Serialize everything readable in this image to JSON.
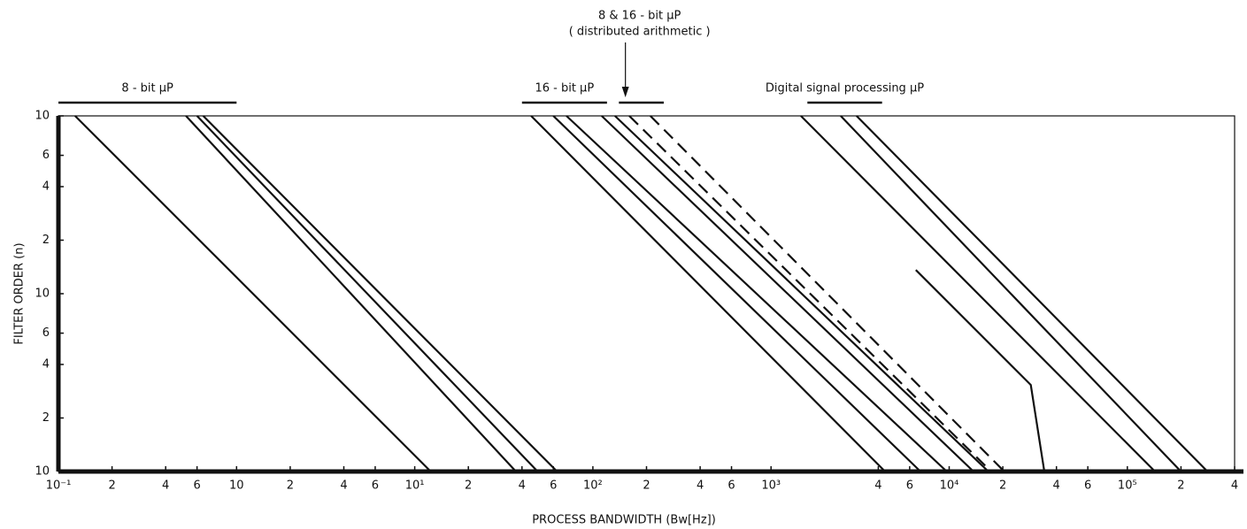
{
  "chart_data": {
    "type": "line",
    "x_label": "PROCESS BANDWIDTH (Bw[Hz])",
    "y_label": "FILTER ORDER (n)",
    "log_x": true,
    "log_y": true,
    "xlim": [
      0.1,
      400000
    ],
    "ylim": [
      1,
      100
    ],
    "xticks": [
      {
        "value": 0.1,
        "label": "10⁻¹"
      },
      {
        "value": 0.2,
        "label": "2"
      },
      {
        "value": 0.4,
        "label": "4"
      },
      {
        "value": 0.6,
        "label": "6"
      },
      {
        "value": 1,
        "label": "10"
      },
      2,
      4,
      6,
      {
        "value": 10,
        "label": "10¹"
      },
      {
        "value": 20,
        "label": "2"
      },
      {
        "value": 40,
        "label": "4"
      },
      {
        "value": 60,
        "label": "6"
      },
      {
        "value": 100,
        "label": "10²"
      },
      {
        "value": 200,
        "label": "2"
      },
      {
        "value": 400,
        "label": "4"
      },
      {
        "value": 600,
        "label": "6"
      },
      {
        "value": 1000,
        "label": "10³"
      },
      {
        "value": 4000,
        "label": "4"
      },
      {
        "value": 6000,
        "label": "6"
      },
      {
        "value": 10000,
        "label": "10⁴"
      },
      {
        "value": 20000,
        "label": "2"
      },
      {
        "value": 40000,
        "label": "4"
      },
      {
        "value": 60000,
        "label": "6"
      },
      {
        "value": 100000,
        "label": "10⁵"
      },
      {
        "value": 200000,
        "label": "2"
      },
      {
        "value": 400000,
        "label": "4"
      }
    ],
    "yticks": [
      {
        "value": 1,
        "label": "10"
      },
      2,
      4,
      6,
      10,
      {
        "value": 20,
        "label": "2"
      },
      {
        "value": 40,
        "label": "4"
      },
      {
        "value": 60,
        "label": "6"
      },
      {
        "value": 100,
        "label": "10"
      }
    ],
    "color": "#111111",
    "series": [
      {
        "x": [
          0.124,
          12.3
        ],
        "values": [
          100,
          1
        ],
        "style": "solid"
      },
      {
        "x": [
          0.52,
          37
        ],
        "values": [
          100,
          1
        ],
        "style": "solid"
      },
      {
        "x": [
          0.6,
          49
        ],
        "values": [
          100,
          1
        ],
        "style": "solid"
      },
      {
        "x": [
          0.65,
          63
        ],
        "values": [
          100,
          1
        ],
        "style": "solid"
      },
      {
        "x": [
          45,
          4370
        ],
        "values": [
          100,
          1
        ],
        "style": "solid"
      },
      {
        "x": [
          60,
          6900
        ],
        "values": [
          100,
          1
        ],
        "style": "solid"
      },
      {
        "x": [
          71,
          9700
        ],
        "values": [
          100,
          1
        ],
        "style": "solid"
      },
      {
        "x": [
          112,
          13700
        ],
        "values": [
          100,
          1
        ],
        "style": "solid"
      },
      {
        "x": [
          133,
          16600
        ],
        "values": [
          100,
          1
        ],
        "style": "solid"
      },
      {
        "x": [
          160,
          17200
        ],
        "values": [
          100,
          1
        ],
        "style": "dashed"
      },
      {
        "x": [
          210,
          20400
        ],
        "values": [
          100,
          1
        ],
        "style": "dashed"
      },
      {
        "x": [
          1470,
          143000
        ],
        "values": [
          100,
          1
        ],
        "style": "solid"
      },
      {
        "x": [
          2460,
          200000
        ],
        "values": [
          100,
          1
        ],
        "style": "solid"
      },
      {
        "x": [
          3020,
          282000
        ],
        "values": [
          100,
          1
        ],
        "style": "solid"
      },
      {
        "x": [
          6500,
          28700,
          34200
        ],
        "values": [
          13.6,
          3.07,
          1
        ],
        "style": "solid"
      }
    ],
    "annotations": [
      {
        "text": "8 - bit µP",
        "range": [
          0.1,
          1
        ]
      },
      {
        "text": "16 - bit µP",
        "range": [
          40,
          120
        ]
      },
      {
        "text": "8 & 16 - bit µP",
        "subtext": "( distributed arithmetic )",
        "range": [
          140,
          250
        ]
      },
      {
        "text": "Digital signal processing µP",
        "range": [
          1600,
          4200
        ]
      }
    ]
  }
}
